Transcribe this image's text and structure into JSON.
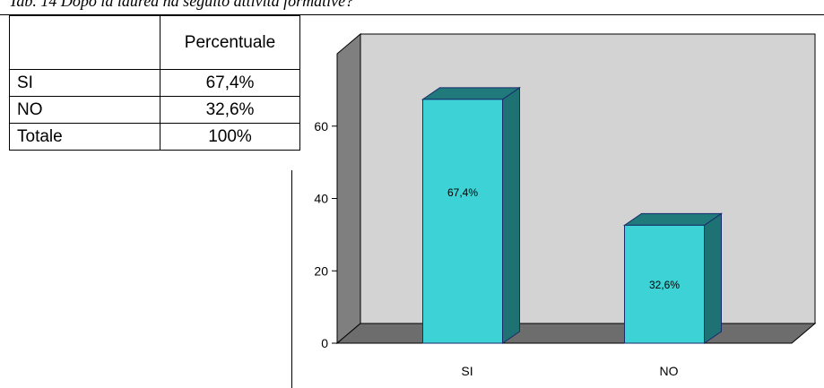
{
  "caption": "Tab. 14 Dopo la laurea ha seguito attività formative?",
  "table": {
    "header": [
      "",
      "Percentuale"
    ],
    "rows": [
      {
        "label": "SI",
        "value": "67,4%"
      },
      {
        "label": "NO",
        "value": "32,6%"
      },
      {
        "label": "Totale",
        "value": "100%"
      }
    ]
  },
  "chart_data": {
    "type": "bar",
    "categories": [
      "SI",
      "NO"
    ],
    "values": [
      67.4,
      32.6
    ],
    "data_labels": [
      "67,4%",
      "32,6%"
    ],
    "y_ticks": [
      0,
      20,
      40,
      60
    ],
    "ylim": [
      0,
      80
    ],
    "grid": false,
    "legend": "none",
    "colors": {
      "bar_front": "#3dd3d6",
      "bar_side": "#1e7274",
      "bar_top": "#207a7c",
      "wall": "#d3d3d3",
      "side_wall": "#7f7f7f",
      "floor": "#6d6d6d"
    }
  }
}
